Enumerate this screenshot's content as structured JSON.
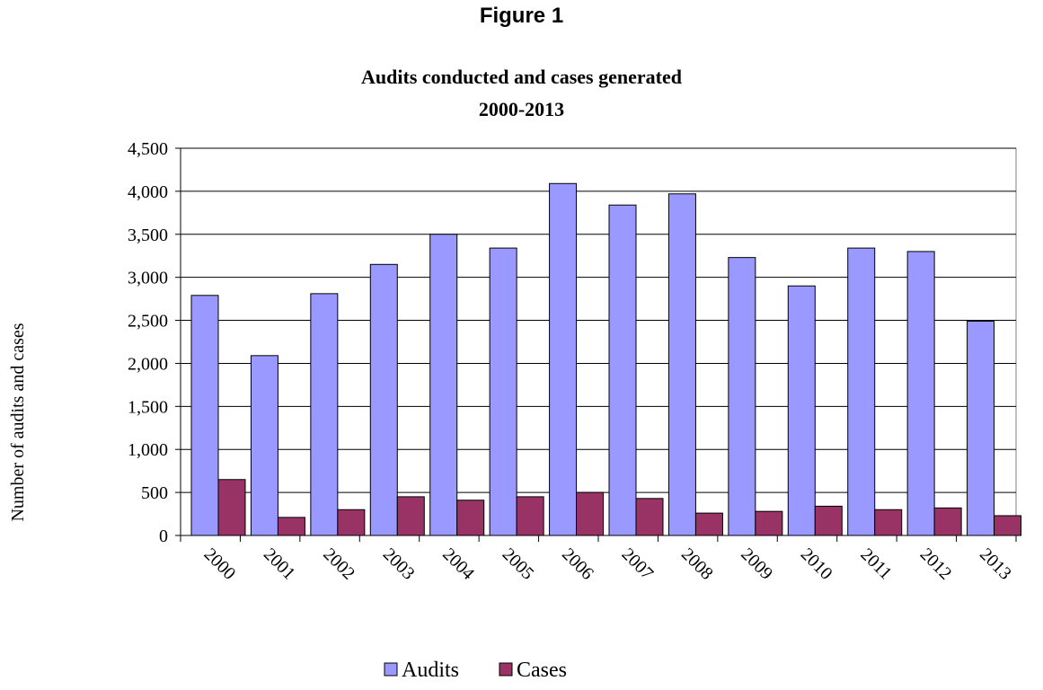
{
  "figure_label": "Figure 1",
  "colors": {
    "audits": "#9999ff",
    "cases": "#993366",
    "grid": "#000000",
    "axis": "#808080"
  },
  "chart_data": {
    "type": "bar",
    "title": "Audits conducted and cases generated",
    "subtitle": "2000-2013",
    "xlabel": "",
    "ylabel": "Number of audits and cases",
    "ylim": [
      0,
      4500
    ],
    "ytick_step": 500,
    "ytick_labels": [
      "0",
      "500",
      "1,000",
      "1,500",
      "2,000",
      "2,500",
      "3,000",
      "3,500",
      "4,000",
      "4,500"
    ],
    "categories": [
      "2000",
      "2001",
      "2002",
      "2003",
      "2004",
      "2005",
      "2006",
      "2007",
      "2008",
      "2009",
      "2010",
      "2011",
      "2012",
      "2013"
    ],
    "series": [
      {
        "name": "Audits",
        "values": [
          2790,
          2090,
          2810,
          3150,
          3500,
          3340,
          4090,
          3840,
          3970,
          3230,
          2900,
          3340,
          3300,
          2490
        ]
      },
      {
        "name": "Cases",
        "values": [
          650,
          210,
          300,
          450,
          410,
          450,
          500,
          430,
          260,
          280,
          340,
          300,
          320,
          230
        ]
      }
    ],
    "grid": true,
    "legend_position": "bottom"
  }
}
